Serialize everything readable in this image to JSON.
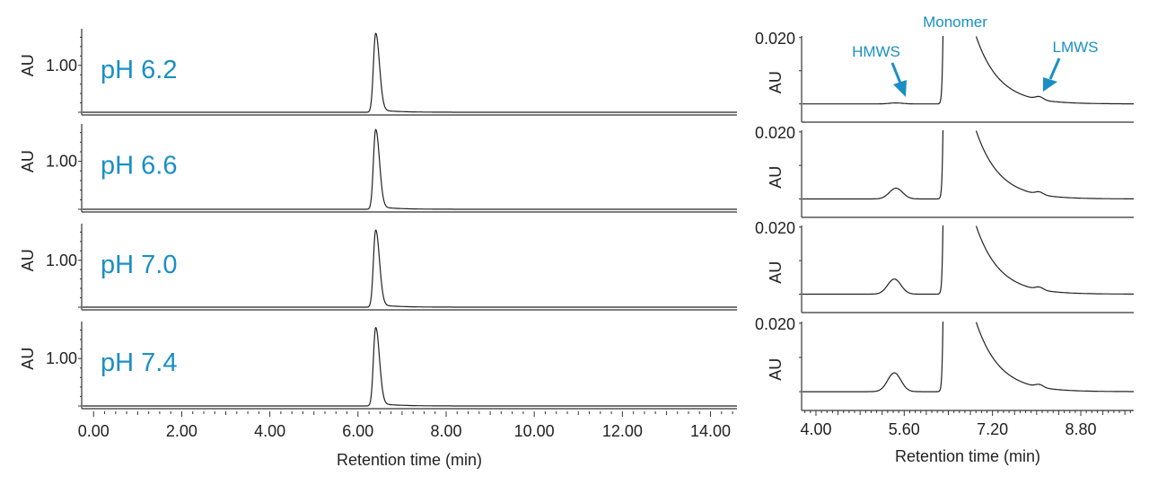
{
  "chart_data": [
    {
      "type": "line",
      "xlabel": "Retention time (min)",
      "ylabel": "AU",
      "xlim": [
        -0.27,
        14.6
      ],
      "ylim": [
        0,
        1.78
      ],
      "x_ticks": [
        "0.00",
        "2.00",
        "4.00",
        "6.00",
        "8.00",
        "10.00",
        "12.00",
        "14.00"
      ],
      "x_tick_values": [
        0,
        2,
        4,
        6,
        8,
        10,
        12,
        14
      ],
      "y_tick_label": "1.00",
      "y_tick_value": 1.0,
      "grid": false,
      "panels": [
        {
          "label": "pH 6.2",
          "monomer_rt": 6.4,
          "monomer_height": 1.68
        },
        {
          "label": "pH 6.6",
          "monomer_rt": 6.4,
          "monomer_height": 1.66
        },
        {
          "label": "pH 7.0",
          "monomer_rt": 6.4,
          "monomer_height": 1.64
        },
        {
          "label": "pH 7.4",
          "monomer_rt": 6.4,
          "monomer_height": 1.65
        }
      ]
    },
    {
      "type": "line",
      "xlabel": "Retention time (min)",
      "ylabel": "AU",
      "xlim": [
        3.74,
        9.76
      ],
      "ylim": [
        -0.0055,
        0.0205
      ],
      "x_ticks": [
        "4.00",
        "5.60",
        "7.20",
        "8.80"
      ],
      "x_tick_values": [
        4.0,
        5.6,
        7.2,
        8.8
      ],
      "y_tick_label": "0.020",
      "y_tick_value": 0.02,
      "grid": false,
      "annotations": {
        "monomer": "Monomer",
        "hmws": "HMWS",
        "lmws": "LMWS"
      },
      "annotation_color": "#1a8fc4",
      "panels": [
        {
          "monomer_rt": 6.45,
          "hmws_rt": 5.45,
          "hmws_height": 0.0003,
          "lmws_rt": 8.05,
          "lmws_height": 0.0009
        },
        {
          "monomer_rt": 6.45,
          "hmws_rt": 5.45,
          "hmws_height": 0.0032,
          "lmws_rt": 8.05,
          "lmws_height": 0.0008
        },
        {
          "monomer_rt": 6.45,
          "hmws_rt": 5.42,
          "hmws_height": 0.0045,
          "lmws_rt": 8.05,
          "lmws_height": 0.0008
        },
        {
          "monomer_rt": 6.45,
          "hmws_rt": 5.42,
          "hmws_height": 0.0055,
          "lmws_rt": 8.05,
          "lmws_height": 0.0008
        }
      ]
    }
  ],
  "colors": {
    "label": "#1a8fc4",
    "trace": "#222222"
  }
}
